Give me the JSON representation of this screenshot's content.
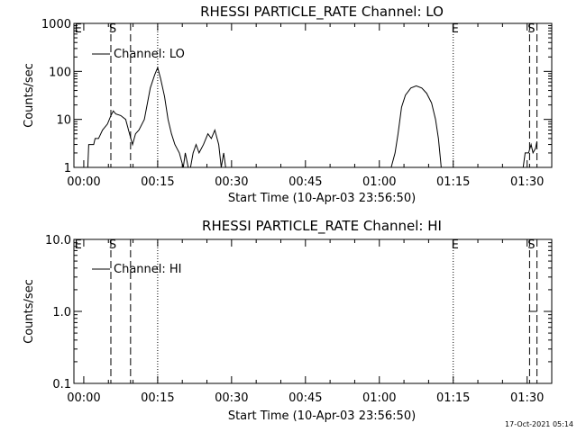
{
  "footer": {
    "timestamp": "17-Oct-2021 05:14"
  },
  "chart_data": [
    {
      "type": "line",
      "title": "RHESSI PARTICLE_RATE Channel: LO",
      "xlabel": "Start Time (10-Apr-03 23:56:50)",
      "ylabel": "Counts/sec",
      "y_scale": "log",
      "ylim": [
        1,
        1000
      ],
      "xlim": [
        -2,
        95
      ],
      "x_units": "minutes after start time",
      "x_ticks": [
        {
          "x": 0,
          "label": "00:00"
        },
        {
          "x": 15,
          "label": "00:15"
        },
        {
          "x": 30,
          "label": "00:30"
        },
        {
          "x": 45,
          "label": "00:45"
        },
        {
          "x": 60,
          "label": "01:00"
        },
        {
          "x": 75,
          "label": "01:15"
        },
        {
          "x": 90,
          "label": "01:30"
        }
      ],
      "y_ticks": [
        {
          "y": 1,
          "label": "1"
        },
        {
          "y": 10,
          "label": "10"
        },
        {
          "y": 100,
          "label": "100"
        },
        {
          "y": 1000,
          "label": "1000"
        }
      ],
      "legend": {
        "label": "Channel: LO",
        "placement": "top-left"
      },
      "markers": [
        {
          "x": -1.5,
          "label": "E",
          "style": "none"
        },
        {
          "x": 5.5,
          "label": "S",
          "style": "dashed"
        },
        {
          "x": 9.5,
          "label": "",
          "style": "dashed"
        },
        {
          "x": 15,
          "label": "",
          "style": "dotted"
        },
        {
          "x": 75,
          "label": "E",
          "style": "dotted"
        },
        {
          "x": 90.5,
          "label": "S",
          "style": "dashed"
        },
        {
          "x": 92,
          "label": "",
          "style": "dashed"
        }
      ],
      "series": [
        {
          "values": [
            {
              "x": 0.8,
              "y": 0.9
            },
            {
              "x": 1.0,
              "y": 3
            },
            {
              "x": 2.0,
              "y": 3
            },
            {
              "x": 2.3,
              "y": 4
            },
            {
              "x": 3.0,
              "y": 4
            },
            {
              "x": 3.8,
              "y": 6
            },
            {
              "x": 4.8,
              "y": 8
            },
            {
              "x": 5.5,
              "y": 12
            },
            {
              "x": 6.0,
              "y": 15
            },
            {
              "x": 6.5,
              "y": 13
            },
            {
              "x": 7.5,
              "y": 12
            },
            {
              "x": 8.5,
              "y": 10
            },
            {
              "x": 9.3,
              "y": 5
            },
            {
              "x": 9.9,
              "y": 3
            },
            {
              "x": 10.5,
              "y": 5
            },
            {
              "x": 11.2,
              "y": 6
            },
            {
              "x": 12.3,
              "y": 10
            },
            {
              "x": 13.5,
              "y": 45
            },
            {
              "x": 14.4,
              "y": 85
            },
            {
              "x": 15.0,
              "y": 120
            },
            {
              "x": 15.6,
              "y": 70
            },
            {
              "x": 16.4,
              "y": 30
            },
            {
              "x": 17.1,
              "y": 10
            },
            {
              "x": 17.8,
              "y": 5
            },
            {
              "x": 18.5,
              "y": 3
            },
            {
              "x": 19.4,
              "y": 2
            },
            {
              "x": 20.2,
              "y": 1
            },
            {
              "x": 20.6,
              "y": 2
            },
            {
              "x": 21.2,
              "y": 1
            },
            {
              "x": 21.6,
              "y": 0.9
            },
            {
              "x": 22.2,
              "y": 2
            },
            {
              "x": 22.8,
              "y": 3
            },
            {
              "x": 23.4,
              "y": 2
            },
            {
              "x": 24.3,
              "y": 3
            },
            {
              "x": 25.2,
              "y": 5
            },
            {
              "x": 25.9,
              "y": 4
            },
            {
              "x": 26.6,
              "y": 6
            },
            {
              "x": 27.4,
              "y": 3
            },
            {
              "x": 27.9,
              "y": 1
            },
            {
              "x": 28.4,
              "y": 2
            },
            {
              "x": 28.8,
              "y": 1
            },
            {
              "x": 29.2,
              "y": 0.9
            }
          ]
        },
        {
          "values": [
            {
              "x": 62.0,
              "y": 0.9
            },
            {
              "x": 62.4,
              "y": 1
            },
            {
              "x": 63.2,
              "y": 2
            },
            {
              "x": 63.8,
              "y": 5
            },
            {
              "x": 64.5,
              "y": 18
            },
            {
              "x": 65.3,
              "y": 32
            },
            {
              "x": 66.4,
              "y": 45
            },
            {
              "x": 67.5,
              "y": 50
            },
            {
              "x": 68.6,
              "y": 45
            },
            {
              "x": 69.6,
              "y": 35
            },
            {
              "x": 70.6,
              "y": 22
            },
            {
              "x": 71.4,
              "y": 10
            },
            {
              "x": 72.0,
              "y": 4
            },
            {
              "x": 72.4,
              "y": 1.5
            },
            {
              "x": 72.6,
              "y": 0.9
            }
          ]
        },
        {
          "values": [
            {
              "x": 88.8,
              "y": 0.9
            },
            {
              "x": 89.2,
              "y": 1
            },
            {
              "x": 89.6,
              "y": 2
            },
            {
              "x": 90.3,
              "y": 2
            },
            {
              "x": 90.8,
              "y": 3
            },
            {
              "x": 91.2,
              "y": 2
            },
            {
              "x": 91.7,
              "y": 2.5
            },
            {
              "x": 92.0,
              "y": 3.5
            }
          ]
        }
      ]
    },
    {
      "type": "line",
      "title": "RHESSI PARTICLE_RATE Channel: HI",
      "xlabel": "Start Time (10-Apr-03 23:56:50)",
      "ylabel": "Counts/sec",
      "y_scale": "log",
      "ylim": [
        0.1,
        10
      ],
      "xlim": [
        -2,
        95
      ],
      "x_units": "minutes after start time",
      "x_ticks": [
        {
          "x": 0,
          "label": "00:00"
        },
        {
          "x": 15,
          "label": "00:15"
        },
        {
          "x": 30,
          "label": "00:30"
        },
        {
          "x": 45,
          "label": "00:45"
        },
        {
          "x": 60,
          "label": "01:00"
        },
        {
          "x": 75,
          "label": "01:15"
        },
        {
          "x": 90,
          "label": "01:30"
        }
      ],
      "y_ticks": [
        {
          "y": 0.1,
          "label": "0.1"
        },
        {
          "y": 1.0,
          "label": "1.0"
        },
        {
          "y": 10.0,
          "label": "10.0"
        }
      ],
      "legend": {
        "label": "Channel: HI",
        "placement": "top-left"
      },
      "markers": [
        {
          "x": -1.5,
          "label": "E",
          "style": "none"
        },
        {
          "x": 5.5,
          "label": "S",
          "style": "dashed"
        },
        {
          "x": 9.5,
          "label": "",
          "style": "dashed"
        },
        {
          "x": 15,
          "label": "",
          "style": "dotted"
        },
        {
          "x": 75,
          "label": "E",
          "style": "dotted"
        },
        {
          "x": 90.5,
          "label": "S",
          "style": "dashed"
        },
        {
          "x": 92,
          "label": "",
          "style": "dashed"
        }
      ],
      "series": [
        {
          "values": [
            {
              "x": 90.3,
              "y": 1.0
            },
            {
              "x": 92.0,
              "y": 1.0
            }
          ]
        }
      ]
    }
  ]
}
